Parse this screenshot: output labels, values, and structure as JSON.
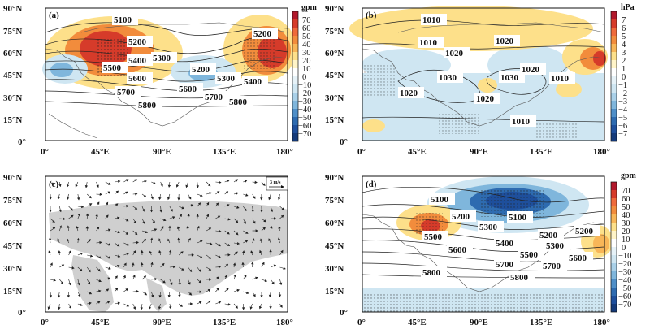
{
  "panels": {
    "a": {
      "label": "(a)",
      "contour_labels": [
        "5100",
        "5200",
        "5300",
        "5200",
        "5400",
        "5500",
        "5600",
        "5200",
        "5300",
        "5400",
        "5600",
        "5700",
        "5700",
        "5800",
        "5800"
      ],
      "colorbar": {
        "unit": "gpm",
        "ticks": [
          "70",
          "60",
          "50",
          "40",
          "30",
          "20",
          "10",
          "0",
          "−10",
          "−20",
          "−30",
          "−40",
          "−50",
          "−60",
          "−70"
        ]
      }
    },
    "b": {
      "label": "(b)",
      "contour_labels": [
        "1010",
        "1010",
        "1020",
        "1020",
        "1030",
        "1030",
        "1020",
        "1010",
        "1020",
        "1020",
        "1010"
      ],
      "colorbar": {
        "unit": "hPa",
        "ticks": [
          "7",
          "6",
          "5",
          "4",
          "3",
          "2",
          "1",
          "0",
          "−1",
          "−2",
          "−3",
          "−4",
          "−5",
          "−6",
          "−7"
        ]
      }
    },
    "c": {
      "label": "(c)",
      "reference_vector": "3 m/s"
    },
    "d": {
      "label": "(d)",
      "contour_labels": [
        "5100",
        "5200",
        "5500",
        "5300",
        "5100",
        "5200",
        "5600",
        "5400",
        "5300",
        "5200",
        "5500",
        "5600",
        "5700",
        "5700",
        "5800",
        "5800"
      ],
      "colorbar": {
        "unit": "gpm",
        "ticks": [
          "70",
          "60",
          "50",
          "40",
          "30",
          "20",
          "10",
          "0",
          "−10",
          "−20",
          "−30",
          "−40",
          "−50",
          "−60",
          "−70"
        ]
      }
    }
  },
  "axes": {
    "lat_ticks": [
      "90°N",
      "75°N",
      "60°N",
      "45°N",
      "30°N",
      "15°N",
      "0°"
    ],
    "lon_ticks": [
      "0°",
      "45°E",
      "90°E",
      "135°E",
      "180°"
    ]
  },
  "colors": {
    "warm_strong": "#d63b2a",
    "warm_mid": "#f28c3c",
    "warm_light": "#fde08a",
    "cool_light": "#cfe6f2",
    "cool_mid": "#7fb6dc",
    "cool_strong": "#1e4f9c",
    "land_grey": "#cfcfcf"
  }
}
